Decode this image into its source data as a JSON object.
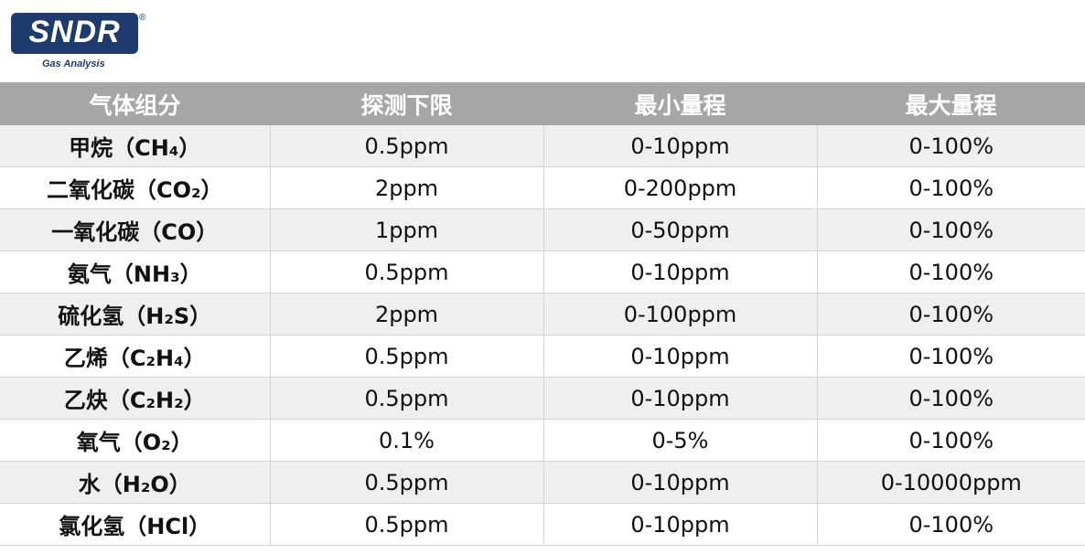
{
  "logo": {
    "brand": "SNDR",
    "registered": "®",
    "tagline": "Gas Analysis",
    "color": "#1f3b6e"
  },
  "table": {
    "headers": [
      "气体组分",
      "探测下限",
      "最小量程",
      "最大量程"
    ],
    "rows": [
      [
        "甲烷（CH₄）",
        "0.5ppm",
        "0-10ppm",
        "0-100%"
      ],
      [
        "二氧化碳（CO₂）",
        "2ppm",
        "0-200ppm",
        "0-100%"
      ],
      [
        "一氧化碳（CO）",
        "1ppm",
        "0-50ppm",
        "0-100%"
      ],
      [
        "氨气（NH₃）",
        "0.5ppm",
        "0-10ppm",
        "0-100%"
      ],
      [
        "硫化氢（H₂S）",
        "2ppm",
        "0-100ppm",
        "0-100%"
      ],
      [
        "乙烯（C₂H₄）",
        "0.5ppm",
        "0-10ppm",
        "0-100%"
      ],
      [
        "乙炔（C₂H₂）",
        "0.5ppm",
        "0-10ppm",
        "0-100%"
      ],
      [
        "氧气（O₂）",
        "0.1%",
        "0-5%",
        "0-100%"
      ],
      [
        "水（H₂O）",
        "0.5ppm",
        "0-10ppm",
        "0-10000ppm"
      ],
      [
        "氯化氢（HCl）",
        "0.5ppm",
        "0-10ppm",
        "0-100%"
      ]
    ],
    "header_color": "#a6a6a6",
    "stripe_color": "#efefef"
  }
}
